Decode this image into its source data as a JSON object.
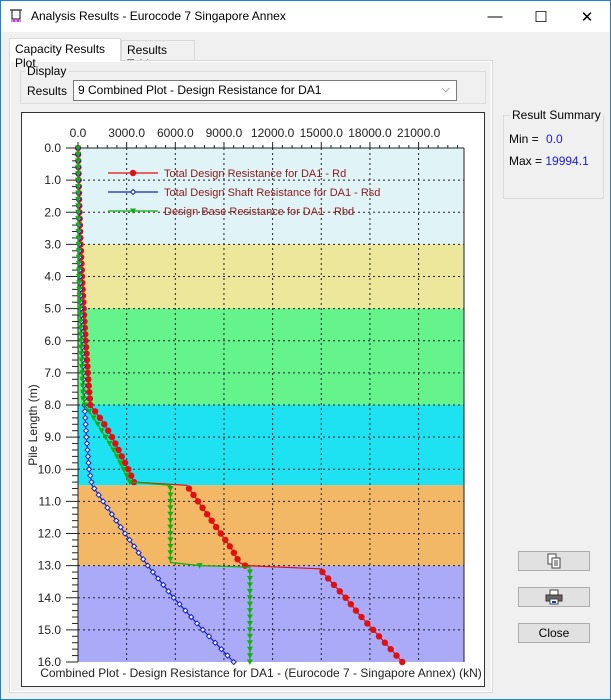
{
  "window": {
    "title": "Analysis Results - Eurocode 7 Singapore Annex",
    "controls": {
      "minimize": "—",
      "maximize": "☐",
      "close": "✕"
    }
  },
  "tabs": [
    {
      "label": "Capacity Results Plot",
      "active": true
    },
    {
      "label": "Results Table",
      "active": false
    }
  ],
  "display": {
    "group_label": "Display",
    "results_label": "Results",
    "results_value": "9   Combined Plot - Design Resistance for DA1"
  },
  "summary": {
    "group_label": "Result Summary",
    "min_label": "Min =",
    "min_value": "0.0",
    "max_label": "Max =",
    "max_value": "19994.1",
    "value_color": "#1a1adc"
  },
  "buttons": {
    "copy_icon": "copy-icon",
    "print_icon": "printer-icon",
    "close_label": "Close"
  },
  "chart_data": {
    "type": "line",
    "title": "",
    "xlabel": "Combined Plot - Design Resistance for DA1 - (Eurocode 7 - Singapore Annex) (kN)",
    "ylabel": "Pile Length (m)",
    "x_ticks": [
      "0.0",
      "3000.0",
      "6000.0",
      "9000.0",
      "12000.0",
      "15000.0",
      "18000.0",
      "21000.0"
    ],
    "y_ticks": [
      "0.0",
      "1.0",
      "2.0",
      "3.0",
      "4.0",
      "5.0",
      "6.0",
      "7.0",
      "8.0",
      "9.0",
      "10.0",
      "11.0",
      "12.0",
      "13.0",
      "14.0",
      "15.0",
      "16.0"
    ],
    "xlim": [
      0,
      23800
    ],
    "ylim": [
      0,
      16
    ],
    "y_inverted": true,
    "grid": true,
    "legend_position": "top-left inside",
    "layers": [
      {
        "from": 0.0,
        "to": 3.0,
        "color": "#e0f3f7"
      },
      {
        "from": 3.0,
        "to": 5.0,
        "color": "#ede79c"
      },
      {
        "from": 5.0,
        "to": 8.0,
        "color": "#65f48c"
      },
      {
        "from": 8.0,
        "to": 10.5,
        "color": "#1ee1f2"
      },
      {
        "from": 10.5,
        "to": 13.0,
        "color": "#f2b866"
      },
      {
        "from": 13.0,
        "to": 16.0,
        "color": "#aaaaf9"
      }
    ],
    "series": [
      {
        "name": "Total Design Resistance for DA1 - Rd",
        "color": "#e01010",
        "marker": "circle",
        "depth": [
          0.0,
          1.0,
          2.0,
          3.0,
          4.0,
          5.0,
          6.0,
          7.0,
          7.5,
          8.0,
          8.5,
          9.0,
          9.5,
          10.0,
          10.4,
          10.5,
          11.0,
          11.5,
          12.0,
          12.5,
          12.9,
          13.0,
          13.1,
          13.5,
          14.0,
          14.5,
          15.0,
          15.5,
          16.0
        ],
        "values": [
          0,
          40,
          90,
          160,
          250,
          350,
          470,
          610,
          680,
          760,
          1500,
          2100,
          2600,
          3100,
          3450,
          6700,
          7400,
          8100,
          8800,
          9500,
          9950,
          10300,
          14900,
          15600,
          16500,
          17300,
          18200,
          19100,
          19994.1
        ]
      },
      {
        "name": "Total Design Shaft Resistance for DA1 - Rsd",
        "color": "#1020d0",
        "marker": "diamond-open",
        "depth": [
          0.0,
          2.0,
          4.0,
          6.0,
          8.0,
          9.0,
          10.0,
          10.5,
          11.0,
          12.0,
          13.0,
          14.0,
          15.0,
          16.0
        ],
        "values": [
          0,
          40,
          120,
          240,
          400,
          520,
          680,
          870,
          1550,
          2900,
          4300,
          5900,
          7700,
          9600
        ]
      },
      {
        "name": "Design Base Resistance for DA1 - Rbd",
        "color": "#10b010",
        "marker": "triangle-down",
        "depth": [
          0.0,
          2.0,
          4.0,
          5.0,
          6.0,
          7.0,
          7.8,
          8.0,
          8.5,
          9.0,
          9.5,
          10.0,
          10.4,
          10.5,
          11.0,
          12.0,
          12.9,
          13.0,
          13.05,
          14.0,
          15.0,
          16.0
        ],
        "values": [
          0,
          10,
          60,
          110,
          180,
          260,
          330,
          420,
          1100,
          1700,
          2300,
          2800,
          3200,
          5700,
          5700,
          5700,
          5700,
          7500,
          10600,
          10600,
          10600,
          10600
        ]
      }
    ]
  }
}
